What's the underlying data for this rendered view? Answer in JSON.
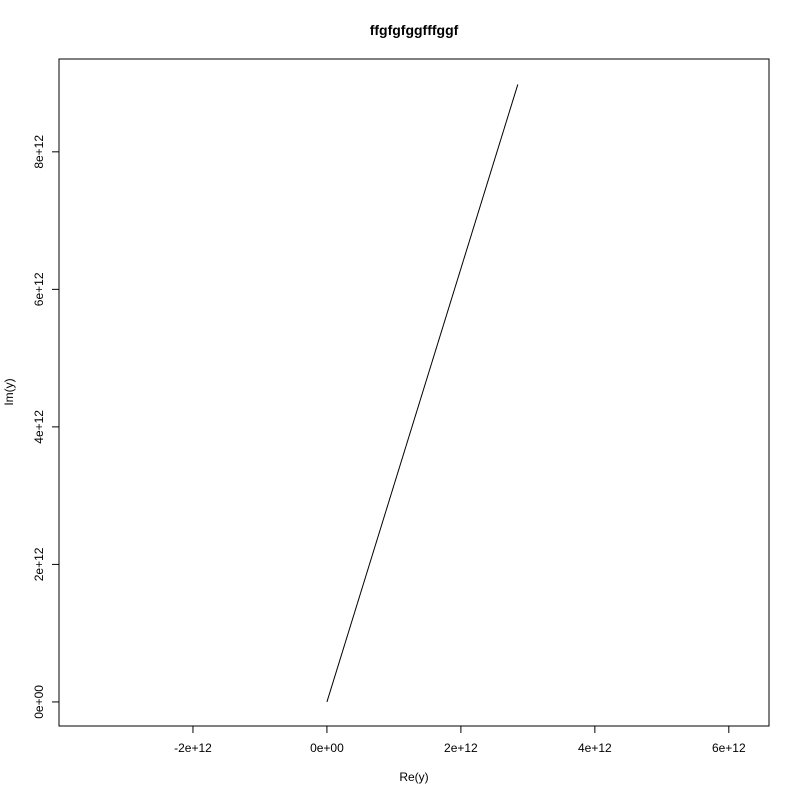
{
  "chart_data": {
    "type": "line",
    "title": "ffgfgfggfffggf",
    "xlabel": "Re(y)",
    "ylabel": "Im(y)",
    "xlim": [
      -4000000000000.0,
      6600000000000.0
    ],
    "ylim": [
      -350000000000.0,
      9350000000000.0
    ],
    "x_ticks": [
      {
        "value": -2000000000000.0,
        "label": "-2e+12"
      },
      {
        "value": 0,
        "label": "0e+00"
      },
      {
        "value": 2000000000000.0,
        "label": "2e+12"
      },
      {
        "value": 4000000000000.0,
        "label": "4e+12"
      },
      {
        "value": 6000000000000.0,
        "label": "6e+12"
      }
    ],
    "y_ticks": [
      {
        "value": 0,
        "label": "0e+00"
      },
      {
        "value": 2000000000000.0,
        "label": "2e+12"
      },
      {
        "value": 4000000000000.0,
        "label": "4e+12"
      },
      {
        "value": 6000000000000.0,
        "label": "6e+12"
      },
      {
        "value": 8000000000000.0,
        "label": "8e+12"
      }
    ],
    "series": [
      {
        "x": [
          0,
          2850000000000.0
        ],
        "y": [
          0,
          8980000000000.0
        ],
        "color": "#000000"
      }
    ],
    "grid": false,
    "legend": "none"
  }
}
